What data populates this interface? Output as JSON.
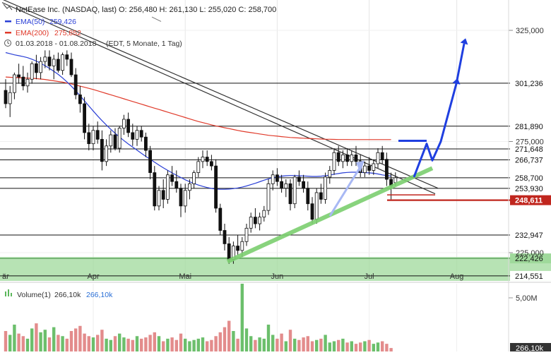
{
  "header": {
    "title": "NetEase Inc. (NASDAQ, last)",
    "ohlc": "O: 256,480  H: 261,130  L: 255,020  C: 258,700",
    "ema50_label": "EMA(50)",
    "ema50_value": "259,426",
    "ema200_label": "EMA(200)",
    "ema200_value": "275,852",
    "range": "01.03.2018 - 01.08.2018",
    "range_note": "(EDT, 5 Monate, 1 Tag)"
  },
  "volume_panel": {
    "label": "Volume(1)",
    "value1": "266,10k",
    "value2": "266,10k",
    "axis_tick": "5,00M",
    "last_badge": "266,10k"
  },
  "colors": {
    "ema50": "#2a3fd6",
    "ema200": "#e03a2a",
    "candle": "#111111",
    "support": "#7ccf6f",
    "support_zone": "#9fd99b",
    "arrow": "#1f3fe0",
    "arrow_light": "#a8b8f4",
    "resistance_red": "#c0261e",
    "volume_up": "#5cb85c",
    "volume_down": "#e08080"
  },
  "chart_data": {
    "type": "candlestick",
    "title": "NetEase Inc. (NASDAQ, last)",
    "x_ticks": [
      "är",
      "Apr",
      "Mai",
      "Jun",
      "Jul",
      "Aug"
    ],
    "y_ticks": [
      "325,000",
      "275,000",
      "225,000"
    ],
    "ylim": [
      210,
      340
    ],
    "horizontal_levels": [
      {
        "value": 301.236,
        "label": "301,236",
        "style": "plain"
      },
      {
        "value": 281.89,
        "label": "281,890",
        "style": "plain"
      },
      {
        "value": 271.648,
        "label": "271,648",
        "style": "plain"
      },
      {
        "value": 266.737,
        "label": "266,737",
        "style": "plain"
      },
      {
        "value": 258.7,
        "label": "258,700",
        "style": "plain"
      },
      {
        "value": 253.93,
        "label": "253,930",
        "style": "plain"
      },
      {
        "value": 248.611,
        "label": "248,611",
        "style": "red"
      },
      {
        "value": 232.947,
        "label": "232,947",
        "style": "plain"
      },
      {
        "value": 222.426,
        "label": "222,426",
        "style": "green"
      },
      {
        "value": 214.551,
        "label": "214,551",
        "style": "plain"
      }
    ],
    "candles": [
      {
        "o": 298,
        "h": 303,
        "l": 290,
        "c": 292
      },
      {
        "o": 292,
        "h": 300,
        "l": 286,
        "c": 297
      },
      {
        "o": 297,
        "h": 306,
        "l": 294,
        "c": 305
      },
      {
        "o": 305,
        "h": 310,
        "l": 301,
        "c": 304
      },
      {
        "o": 304,
        "h": 309,
        "l": 298,
        "c": 300
      },
      {
        "o": 300,
        "h": 306,
        "l": 297,
        "c": 303
      },
      {
        "o": 303,
        "h": 311,
        "l": 301,
        "c": 310
      },
      {
        "o": 310,
        "h": 314,
        "l": 303,
        "c": 306
      },
      {
        "o": 306,
        "h": 313,
        "l": 303,
        "c": 311
      },
      {
        "o": 311,
        "h": 316,
        "l": 308,
        "c": 313
      },
      {
        "o": 313,
        "h": 316,
        "l": 307,
        "c": 309
      },
      {
        "o": 309,
        "h": 314,
        "l": 303,
        "c": 312
      },
      {
        "o": 312,
        "h": 315,
        "l": 306,
        "c": 307
      },
      {
        "o": 307,
        "h": 315,
        "l": 305,
        "c": 314
      },
      {
        "o": 314,
        "h": 316,
        "l": 309,
        "c": 312
      },
      {
        "o": 312,
        "h": 315,
        "l": 304,
        "c": 305
      },
      {
        "o": 305,
        "h": 308,
        "l": 294,
        "c": 296
      },
      {
        "o": 296,
        "h": 300,
        "l": 288,
        "c": 292
      },
      {
        "o": 292,
        "h": 295,
        "l": 276,
        "c": 279
      },
      {
        "o": 279,
        "h": 283,
        "l": 271,
        "c": 274
      },
      {
        "o": 274,
        "h": 282,
        "l": 271,
        "c": 280
      },
      {
        "o": 280,
        "h": 284,
        "l": 274,
        "c": 276
      },
      {
        "o": 276,
        "h": 280,
        "l": 262,
        "c": 266
      },
      {
        "o": 266,
        "h": 276,
        "l": 264,
        "c": 273
      },
      {
        "o": 273,
        "h": 280,
        "l": 270,
        "c": 278
      },
      {
        "o": 278,
        "h": 281,
        "l": 271,
        "c": 272
      },
      {
        "o": 272,
        "h": 282,
        "l": 270,
        "c": 281
      },
      {
        "o": 281,
        "h": 287,
        "l": 278,
        "c": 285
      },
      {
        "o": 285,
        "h": 288,
        "l": 277,
        "c": 279
      },
      {
        "o": 279,
        "h": 283,
        "l": 273,
        "c": 276
      },
      {
        "o": 276,
        "h": 282,
        "l": 273,
        "c": 280
      },
      {
        "o": 280,
        "h": 282,
        "l": 275,
        "c": 277
      },
      {
        "o": 277,
        "h": 279,
        "l": 268,
        "c": 271
      },
      {
        "o": 271,
        "h": 273,
        "l": 258,
        "c": 261
      },
      {
        "o": 261,
        "h": 264,
        "l": 244,
        "c": 246
      },
      {
        "o": 246,
        "h": 255,
        "l": 244,
        "c": 253
      },
      {
        "o": 253,
        "h": 258,
        "l": 245,
        "c": 249
      },
      {
        "o": 249,
        "h": 262,
        "l": 247,
        "c": 260
      },
      {
        "o": 260,
        "h": 264,
        "l": 255,
        "c": 257
      },
      {
        "o": 257,
        "h": 262,
        "l": 252,
        "c": 254
      },
      {
        "o": 254,
        "h": 256,
        "l": 241,
        "c": 246
      },
      {
        "o": 246,
        "h": 256,
        "l": 243,
        "c": 253
      },
      {
        "o": 253,
        "h": 258,
        "l": 249,
        "c": 256
      },
      {
        "o": 256,
        "h": 262,
        "l": 254,
        "c": 261
      },
      {
        "o": 261,
        "h": 268,
        "l": 259,
        "c": 266
      },
      {
        "o": 266,
        "h": 271,
        "l": 263,
        "c": 268
      },
      {
        "o": 268,
        "h": 271,
        "l": 264,
        "c": 266
      },
      {
        "o": 266,
        "h": 269,
        "l": 262,
        "c": 264
      },
      {
        "o": 264,
        "h": 267,
        "l": 243,
        "c": 245
      },
      {
        "o": 245,
        "h": 247,
        "l": 233,
        "c": 235
      },
      {
        "o": 235,
        "h": 238,
        "l": 226,
        "c": 229
      },
      {
        "o": 229,
        "h": 232,
        "l": 220,
        "c": 222
      },
      {
        "o": 222,
        "h": 230,
        "l": 220,
        "c": 228
      },
      {
        "o": 228,
        "h": 233,
        "l": 224,
        "c": 226
      },
      {
        "o": 226,
        "h": 232,
        "l": 223,
        "c": 230
      },
      {
        "o": 230,
        "h": 238,
        "l": 228,
        "c": 236
      },
      {
        "o": 236,
        "h": 243,
        "l": 234,
        "c": 241
      },
      {
        "o": 241,
        "h": 245,
        "l": 236,
        "c": 238
      },
      {
        "o": 238,
        "h": 243,
        "l": 235,
        "c": 241
      },
      {
        "o": 241,
        "h": 246,
        "l": 239,
        "c": 244
      },
      {
        "o": 244,
        "h": 258,
        "l": 242,
        "c": 256
      },
      {
        "o": 256,
        "h": 262,
        "l": 253,
        "c": 260
      },
      {
        "o": 260,
        "h": 263,
        "l": 255,
        "c": 257
      },
      {
        "o": 257,
        "h": 260,
        "l": 252,
        "c": 254
      },
      {
        "o": 254,
        "h": 258,
        "l": 250,
        "c": 256
      },
      {
        "o": 256,
        "h": 258,
        "l": 244,
        "c": 247
      },
      {
        "o": 247,
        "h": 260,
        "l": 245,
        "c": 259
      },
      {
        "o": 259,
        "h": 262,
        "l": 255,
        "c": 257
      },
      {
        "o": 257,
        "h": 260,
        "l": 252,
        "c": 254
      },
      {
        "o": 254,
        "h": 257,
        "l": 244,
        "c": 247
      },
      {
        "o": 247,
        "h": 250,
        "l": 238,
        "c": 240
      },
      {
        "o": 240,
        "h": 254,
        "l": 238,
        "c": 252
      },
      {
        "o": 252,
        "h": 256,
        "l": 247,
        "c": 249
      },
      {
        "o": 249,
        "h": 261,
        "l": 247,
        "c": 259
      },
      {
        "o": 259,
        "h": 264,
        "l": 256,
        "c": 262
      },
      {
        "o": 262,
        "h": 272,
        "l": 260,
        "c": 270
      },
      {
        "o": 270,
        "h": 273,
        "l": 264,
        "c": 266
      },
      {
        "o": 266,
        "h": 271,
        "l": 263,
        "c": 269
      },
      {
        "o": 269,
        "h": 272,
        "l": 264,
        "c": 266
      },
      {
        "o": 266,
        "h": 271,
        "l": 264,
        "c": 269
      },
      {
        "o": 269,
        "h": 273,
        "l": 264,
        "c": 266
      },
      {
        "o": 266,
        "h": 269,
        "l": 259,
        "c": 261
      },
      {
        "o": 261,
        "h": 266,
        "l": 259,
        "c": 264
      },
      {
        "o": 264,
        "h": 268,
        "l": 260,
        "c": 262
      },
      {
        "o": 262,
        "h": 267,
        "l": 260,
        "c": 265
      },
      {
        "o": 265,
        "h": 272,
        "l": 263,
        "c": 270
      },
      {
        "o": 270,
        "h": 273,
        "l": 265,
        "c": 267
      },
      {
        "o": 267,
        "h": 270,
        "l": 255,
        "c": 258
      },
      {
        "o": 258,
        "h": 261,
        "l": 249,
        "c": 255
      },
      {
        "o": 256.48,
        "h": 261.13,
        "l": 255.02,
        "c": 258.7
      }
    ],
    "ema50": [
      315,
      314.5,
      314,
      313.6,
      313.2,
      312.7,
      312,
      311.2,
      310.2,
      309.1,
      307.9,
      306.6,
      305.2,
      303.6,
      301.8,
      299.9,
      297.8,
      295.6,
      293.3,
      291,
      288.7,
      286.5,
      284.4,
      282.4,
      280.5,
      278.7,
      277,
      275.4,
      273.9,
      272.5,
      271.1,
      269.7,
      268.3,
      267,
      265.7,
      264.4,
      263.2,
      262,
      260.9,
      259.8,
      258.8,
      257.8,
      256.9,
      256.1,
      255.4,
      254.8,
      254.3,
      253.9,
      253.6,
      253.5,
      253.5,
      253.6,
      253.8,
      254.1,
      254.5,
      255,
      255.6,
      256.2,
      256.9,
      257.6,
      258.2,
      258.7,
      259.1,
      259.4,
      259.6,
      259.7,
      259.7,
      259.6,
      259.5,
      259.4,
      259.3,
      259.3,
      259.4,
      259.6,
      259.9,
      260.3,
      260.6,
      260.9,
      261.1,
      261.2,
      261.2,
      261.1,
      261,
      260.9,
      260.7,
      260.4,
      260,
      259.7,
      259.43
    ],
    "ema200": [
      304,
      303.9,
      303.8,
      303.7,
      303.6,
      303.5,
      303.4,
      303.3,
      303.1,
      302.9,
      302.6,
      302.3,
      302,
      301.7,
      301.3,
      300.9,
      300.4,
      299.9,
      299.4,
      298.9,
      298.4,
      297.8,
      297.2,
      296.6,
      296,
      295.4,
      294.8,
      294.2,
      293.6,
      293,
      292.4,
      291.8,
      291.2,
      290.6,
      290,
      289.4,
      288.8,
      288.2,
      287.6,
      287,
      286.4,
      285.8,
      285.2,
      284.6,
      284,
      283.5,
      283,
      282.5,
      282,
      281.6,
      281.2,
      280.8,
      280.4,
      280,
      279.6,
      279.3,
      279,
      278.7,
      278.4,
      278.1,
      277.8,
      277.6,
      277.4,
      277.2,
      277,
      276.8,
      276.7,
      276.6,
      276.5,
      276.4,
      276.3,
      276.2,
      276.1,
      276,
      276,
      275.95,
      275.9,
      275.9,
      275.88,
      275.87,
      275.86,
      275.86,
      275.86,
      275.855,
      275.855,
      275.855,
      275.853,
      275.852,
      275.852
    ],
    "volume": [
      1.6,
      1.3,
      2.1,
      1.4,
      1.2,
      1.0,
      1.8,
      2.2,
      1.5,
      1.7,
      1.1,
      1.9,
      1.3,
      1.2,
      1.0,
      1.6,
      1.8,
      2.0,
      1.4,
      1.2,
      1.1,
      1.3,
      1.7,
      1.0,
      0.9,
      1.2,
      1.4,
      1.1,
      1.0,
      0.9,
      1.2,
      1.0,
      1.1,
      1.3,
      1.5,
      1.2,
      0.8,
      1.0,
      1.1,
      0.9,
      1.4,
      1.0,
      0.8,
      0.9,
      1.0,
      1.1,
      0.8,
      0.9,
      1.2,
      1.5,
      1.9,
      2.4,
      1.6,
      1.0,
      5.3,
      1.8,
      1.2,
      0.9,
      1.1,
      1.0,
      2.1,
      1.3,
      1.0,
      1.4,
      0.8,
      1.7,
      1.0,
      0.9,
      1.1,
      1.2,
      0.8,
      0.9,
      1.0,
      1.3,
      0.7,
      0.8,
      0.9,
      1.0,
      0.7,
      0.8,
      0.6,
      0.7,
      0.8,
      0.9,
      0.6,
      0.7,
      0.8,
      0.6,
      0.27
    ]
  }
}
